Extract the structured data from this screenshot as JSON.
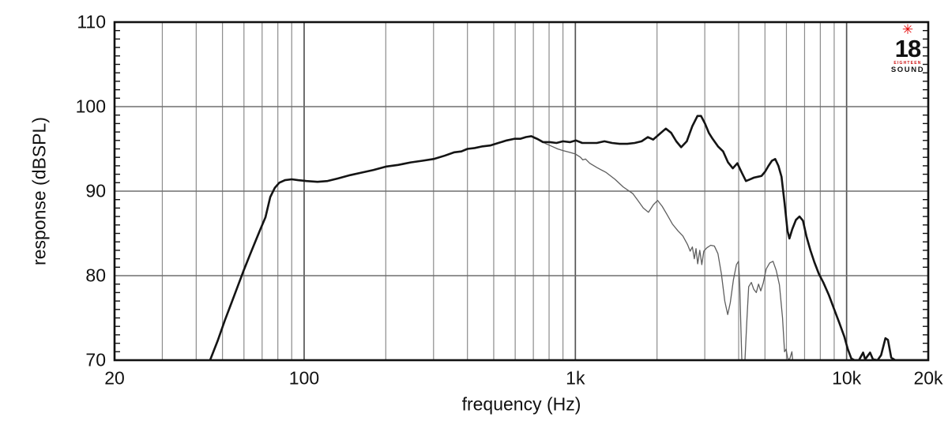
{
  "logo": {
    "star": "✳",
    "number": "18",
    "eighteen": "EIGHTEEN",
    "sound": "SOUND",
    "star_color": "#e60000",
    "eighteen_color": "#cc1111",
    "text_color": "#111111"
  },
  "chart_data": {
    "type": "line",
    "title": "",
    "xlabel": "frequency (Hz)",
    "ylabel": "response (dBSPL)",
    "x_scale": "log",
    "xlim": [
      20,
      20000
    ],
    "ylim": [
      70,
      110
    ],
    "grid": true,
    "legend": "none",
    "x_ticks": [
      {
        "value": 20,
        "label": "20"
      },
      {
        "value": 100,
        "label": "100"
      },
      {
        "value": 1000,
        "label": "1k"
      },
      {
        "value": 10000,
        "label": "10k"
      },
      {
        "value": 20000,
        "label": "20k"
      }
    ],
    "y_ticks": [
      {
        "value": 110,
        "label": "110"
      },
      {
        "value": 100,
        "label": "100"
      },
      {
        "value": 90,
        "label": "90"
      },
      {
        "value": 80,
        "label": "80"
      },
      {
        "value": 70,
        "label": "70"
      }
    ],
    "x_gridlines_minor": [
      30,
      40,
      50,
      60,
      70,
      80,
      90,
      200,
      300,
      400,
      500,
      600,
      700,
      800,
      900,
      2000,
      3000,
      4000,
      5000,
      6000,
      7000,
      8000,
      9000
    ],
    "x_gridlines_major": [
      100,
      1000,
      10000
    ],
    "y_gridlines": [
      80,
      90,
      100
    ],
    "y_minor_tick_step": 1,
    "colors": {
      "grid_minor": "#8c8c8c",
      "grid_major": "#555555",
      "grid_horizontal": "#6e6e6e",
      "axis": "#111111"
    },
    "series": [
      {
        "name": "thin-gray-curve",
        "color": "#5e5e5e",
        "width": 1.3,
        "points": [
          [
            700,
            96.3
          ],
          [
            740,
            96.0
          ],
          [
            780,
            95.6
          ],
          [
            820,
            95.3
          ],
          [
            860,
            95.0
          ],
          [
            900,
            94.8
          ],
          [
            950,
            94.6
          ],
          [
            1000,
            94.4
          ],
          [
            1045,
            94.0
          ],
          [
            1065,
            93.7
          ],
          [
            1090,
            93.8
          ],
          [
            1130,
            93.3
          ],
          [
            1200,
            92.8
          ],
          [
            1300,
            92.2
          ],
          [
            1400,
            91.4
          ],
          [
            1500,
            90.5
          ],
          [
            1630,
            89.7
          ],
          [
            1700,
            88.9
          ],
          [
            1780,
            88.0
          ],
          [
            1860,
            87.5
          ],
          [
            1940,
            88.4
          ],
          [
            2010,
            88.9
          ],
          [
            2090,
            88.2
          ],
          [
            2180,
            87.2
          ],
          [
            2280,
            86.1
          ],
          [
            2390,
            85.3
          ],
          [
            2490,
            84.7
          ],
          [
            2590,
            83.7
          ],
          [
            2650,
            82.9
          ],
          [
            2700,
            83.4
          ],
          [
            2745,
            82.0
          ],
          [
            2785,
            83.2
          ],
          [
            2825,
            81.4
          ],
          [
            2875,
            83.0
          ],
          [
            2925,
            81.3
          ],
          [
            2975,
            82.9
          ],
          [
            3055,
            83.3
          ],
          [
            3155,
            83.6
          ],
          [
            3255,
            83.5
          ],
          [
            3355,
            82.6
          ],
          [
            3455,
            80.2
          ],
          [
            3555,
            77.0
          ],
          [
            3645,
            75.4
          ],
          [
            3725,
            76.8
          ],
          [
            3825,
            79.5
          ],
          [
            3925,
            81.3
          ],
          [
            3995,
            81.7
          ],
          [
            4035,
            79.0
          ],
          [
            4075,
            74.0
          ],
          [
            4115,
            69.3
          ],
          [
            4205,
            69.0
          ],
          [
            4285,
            74.5
          ],
          [
            4355,
            78.7
          ],
          [
            4455,
            79.2
          ],
          [
            4545,
            78.4
          ],
          [
            4645,
            78.0
          ],
          [
            4735,
            79.0
          ],
          [
            4825,
            78.2
          ],
          [
            4925,
            79.1
          ],
          [
            5055,
            80.8
          ],
          [
            5205,
            81.5
          ],
          [
            5355,
            81.7
          ],
          [
            5505,
            80.6
          ],
          [
            5655,
            78.9
          ],
          [
            5805,
            75.0
          ],
          [
            5905,
            71.0
          ],
          [
            5985,
            71.3
          ],
          [
            6065,
            70.2
          ],
          [
            6165,
            70.1
          ],
          [
            6285,
            71.0
          ],
          [
            6385,
            68.5
          ]
        ]
      },
      {
        "name": "thick-black-curve",
        "color": "#141414",
        "width": 2.6,
        "points": [
          [
            44,
            69.0
          ],
          [
            45,
            70.0
          ],
          [
            48,
            72.3
          ],
          [
            51,
            74.7
          ],
          [
            54,
            76.8
          ],
          [
            57,
            78.8
          ],
          [
            60,
            80.7
          ],
          [
            63,
            82.4
          ],
          [
            66,
            84.0
          ],
          [
            69,
            85.5
          ],
          [
            72,
            86.9
          ],
          [
            75,
            89.3
          ],
          [
            78,
            90.4
          ],
          [
            81,
            91.0
          ],
          [
            85,
            91.3
          ],
          [
            90,
            91.4
          ],
          [
            95,
            91.3
          ],
          [
            102,
            91.2
          ],
          [
            112,
            91.1
          ],
          [
            122,
            91.2
          ],
          [
            133,
            91.5
          ],
          [
            148,
            91.9
          ],
          [
            163,
            92.2
          ],
          [
            180,
            92.5
          ],
          [
            200,
            92.9
          ],
          [
            222,
            93.1
          ],
          [
            247,
            93.4
          ],
          [
            273,
            93.6
          ],
          [
            300,
            93.8
          ],
          [
            330,
            94.2
          ],
          [
            358,
            94.6
          ],
          [
            380,
            94.7
          ],
          [
            400,
            95.0
          ],
          [
            425,
            95.1
          ],
          [
            455,
            95.3
          ],
          [
            485,
            95.4
          ],
          [
            520,
            95.7
          ],
          [
            558,
            96.0
          ],
          [
            598,
            96.2
          ],
          [
            628,
            96.2
          ],
          [
            658,
            96.4
          ],
          [
            688,
            96.5
          ],
          [
            722,
            96.2
          ],
          [
            760,
            95.8
          ],
          [
            805,
            95.8
          ],
          [
            852,
            95.7
          ],
          [
            900,
            95.9
          ],
          [
            955,
            95.8
          ],
          [
            1005,
            96.0
          ],
          [
            1060,
            95.7
          ],
          [
            1125,
            95.7
          ],
          [
            1200,
            95.7
          ],
          [
            1280,
            95.9
          ],
          [
            1365,
            95.7
          ],
          [
            1455,
            95.6
          ],
          [
            1555,
            95.6
          ],
          [
            1655,
            95.7
          ],
          [
            1755,
            95.9
          ],
          [
            1850,
            96.4
          ],
          [
            1935,
            96.1
          ],
          [
            2050,
            96.8
          ],
          [
            2155,
            97.4
          ],
          [
            2255,
            96.9
          ],
          [
            2355,
            95.9
          ],
          [
            2455,
            95.2
          ],
          [
            2575,
            95.9
          ],
          [
            2700,
            97.7
          ],
          [
            2820,
            98.9
          ],
          [
            2905,
            98.9
          ],
          [
            3005,
            98.0
          ],
          [
            3105,
            96.9
          ],
          [
            3205,
            96.2
          ],
          [
            3355,
            95.3
          ],
          [
            3505,
            94.7
          ],
          [
            3655,
            93.4
          ],
          [
            3805,
            92.7
          ],
          [
            3955,
            93.3
          ],
          [
            4105,
            92.2
          ],
          [
            4255,
            91.2
          ],
          [
            4405,
            91.4
          ],
          [
            4555,
            91.6
          ],
          [
            4705,
            91.7
          ],
          [
            4855,
            91.8
          ],
          [
            5005,
            92.3
          ],
          [
            5155,
            93.0
          ],
          [
            5305,
            93.6
          ],
          [
            5455,
            93.8
          ],
          [
            5605,
            93.0
          ],
          [
            5755,
            91.7
          ],
          [
            5905,
            88.6
          ],
          [
            6055,
            85.3
          ],
          [
            6155,
            84.4
          ],
          [
            6305,
            85.5
          ],
          [
            6505,
            86.6
          ],
          [
            6705,
            87.0
          ],
          [
            6905,
            86.5
          ],
          [
            7105,
            84.7
          ],
          [
            7355,
            83.0
          ],
          [
            7605,
            81.6
          ],
          [
            7905,
            80.2
          ],
          [
            8205,
            79.2
          ],
          [
            8605,
            77.7
          ],
          [
            9005,
            76.0
          ],
          [
            9405,
            74.4
          ],
          [
            9805,
            72.8
          ],
          [
            10105,
            71.3
          ],
          [
            10405,
            70.2
          ],
          [
            10705,
            70.0
          ],
          [
            11105,
            70.0
          ],
          [
            11505,
            70.9
          ],
          [
            11705,
            70.1
          ],
          [
            12205,
            70.9
          ],
          [
            12505,
            70.1
          ],
          [
            13005,
            70.0
          ],
          [
            13405,
            70.6
          ],
          [
            13905,
            72.6
          ],
          [
            14205,
            72.4
          ],
          [
            14605,
            70.3
          ],
          [
            15105,
            70.0
          ],
          [
            16005,
            70.0
          ],
          [
            18005,
            70.0
          ],
          [
            20000,
            70.0
          ]
        ]
      }
    ]
  }
}
